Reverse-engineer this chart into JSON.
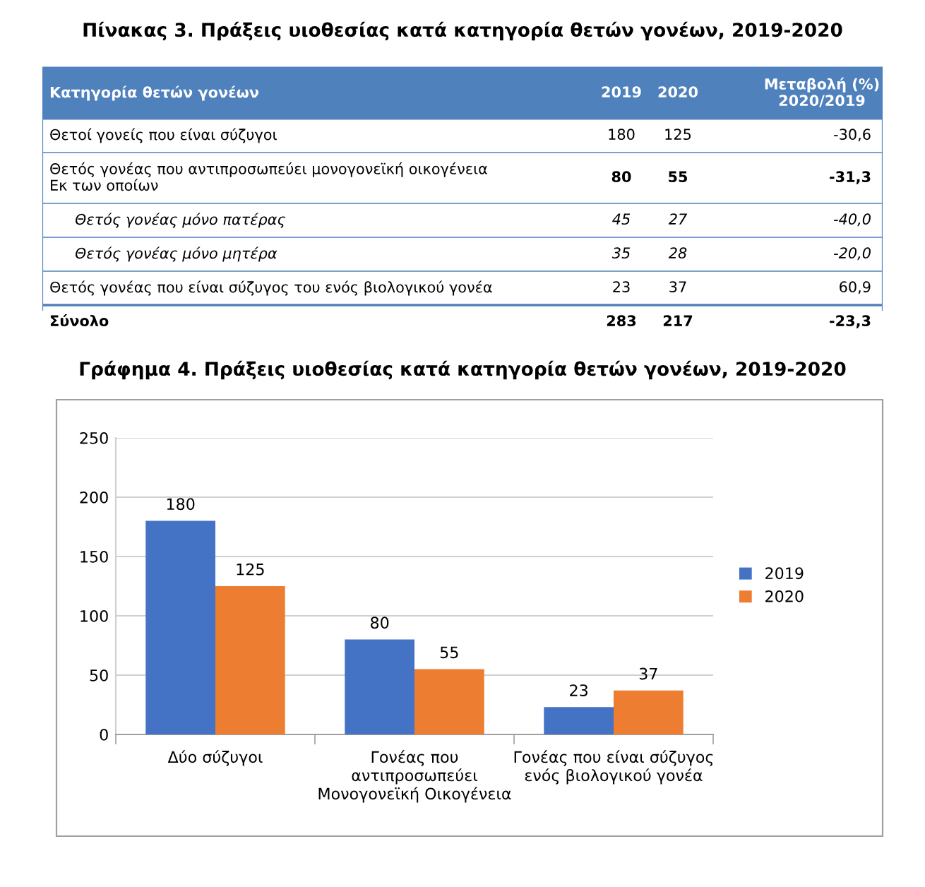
{
  "chart_data": [
    {
      "type": "other",
      "title": "Πίνακας 3. Πράξεις υιοθεσίας κατά κατηγορία θετών γονέων, 2019-2020",
      "annotations": [
        "Κατηγορία θετών γονέων",
        "2019",
        "2020",
        "Μεταβολή (%)\n2020/2019",
        "Θετοί γονείς που είναι σύζυγοι",
        "180",
        "125",
        "-30,6",
        "Θετός γονέας που αντιπροσωπεύει μονογονεϊκή οικογένεια\nΕκ των οποίων",
        "80",
        "55",
        "-31,3",
        "Θετός γονέας μόνο πατέρας",
        "45",
        "27",
        "-40,0",
        "Θετός γονέας μόνο μητέρα",
        "35",
        "28",
        "-20,0",
        "Θετός γονέας που είναι σύζυγος του ενός βιολογικού γονέα",
        "23",
        "37",
        "60,9",
        "Σύνολο",
        "283",
        "217",
        "-23,3"
      ]
    },
    {
      "type": "bar",
      "title": "Γράφημα 4. Πράξεις υιοθεσίας κατά κατηγορία θετών γονέων, 2019-2020",
      "categories": [
        "Δύο σύζυγοι",
        "Γονέας που\nαντιπροσωπεύει\nΜονογονεϊκή Οικογένεια",
        "Γονέας που είναι σύζυγος\nενός βιολογικού γονέα"
      ],
      "series": [
        {
          "name": "2019",
          "color": "#4472c4",
          "values": [
            180,
            80,
            23
          ]
        },
        {
          "name": "2020",
          "color": "#ed7d31",
          "values": [
            125,
            55,
            37
          ]
        }
      ],
      "ylim": [
        0,
        250
      ],
      "yticks": [
        0,
        50,
        100,
        150,
        200,
        250
      ],
      "grid": "y",
      "legend": "right",
      "data_labels": true
    }
  ]
}
